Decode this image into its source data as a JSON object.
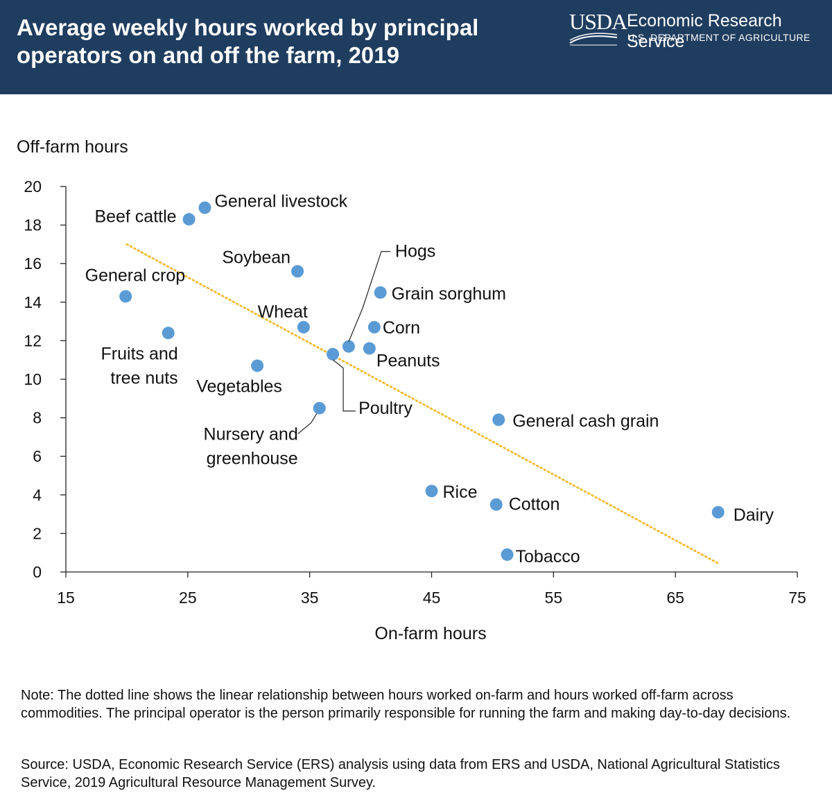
{
  "header": {
    "title": "Average weekly hours worked by principal operators on and off the farm, 2019",
    "logo_usda": "USDA",
    "logo_agency": "Economic Research Service",
    "logo_department": "U.S. DEPARTMENT OF AGRICULTURE",
    "background_color": "#1f3d5f"
  },
  "chart_data": {
    "type": "scatter",
    "title": "Average weekly hours worked by principal operators on and off the farm, 2019",
    "xlabel": "On-farm hours",
    "ylabel": "Off-farm hours",
    "xlim": [
      15,
      75
    ],
    "ylim": [
      0,
      20
    ],
    "x_ticks": [
      15,
      25,
      35,
      45,
      55,
      65,
      75
    ],
    "y_ticks": [
      0,
      2,
      4,
      6,
      8,
      10,
      12,
      14,
      16,
      18,
      20
    ],
    "grid": false,
    "point_color": "#5b9bd5",
    "trendline": {
      "style": "dotted",
      "color": "#f2b51c",
      "x": [
        20,
        68.5
      ],
      "y": [
        17.0,
        0.45
      ]
    },
    "points": [
      {
        "label": "Beef cattle",
        "x": 25.1,
        "y": 18.3
      },
      {
        "label": "General livestock",
        "x": 26.4,
        "y": 18.9
      },
      {
        "label": "Soybean",
        "x": 34.0,
        "y": 15.6
      },
      {
        "label": "General crop",
        "x": 19.9,
        "y": 14.3
      },
      {
        "label": "Fruits and tree nuts",
        "x": 23.4,
        "y": 12.4
      },
      {
        "label": "Wheat",
        "x": 34.5,
        "y": 12.7
      },
      {
        "label": "Vegetables",
        "x": 30.7,
        "y": 10.7
      },
      {
        "label": "Hogs",
        "x": 38.2,
        "y": 11.7
      },
      {
        "label": "Grain sorghum",
        "x": 40.8,
        "y": 14.5
      },
      {
        "label": "Corn",
        "x": 40.3,
        "y": 12.7
      },
      {
        "label": "Peanuts",
        "x": 39.9,
        "y": 11.6
      },
      {
        "label": "Poultry",
        "x": 36.9,
        "y": 11.3
      },
      {
        "label": "Nursery and greenhouse",
        "x": 35.8,
        "y": 8.5
      },
      {
        "label": "General cash grain",
        "x": 50.5,
        "y": 7.9
      },
      {
        "label": "Rice",
        "x": 45.0,
        "y": 4.2
      },
      {
        "label": "Cotton",
        "x": 50.3,
        "y": 3.5
      },
      {
        "label": "Dairy",
        "x": 68.5,
        "y": 3.1
      },
      {
        "label": "Tobacco",
        "x": 51.2,
        "y": 0.9
      }
    ]
  },
  "footer": {
    "note": "Note: The dotted line shows the linear relationship between hours worked on-farm and hours worked off-farm across commodities. The principal operator is the person primarily responsible for running the farm and making day-to-day decisions.",
    "source": "Source: USDA, Economic Research Service (ERS) analysis using data from ERS and USDA, National Agricultural Statistics Service, 2019 Agricultural Resource Management Survey."
  }
}
